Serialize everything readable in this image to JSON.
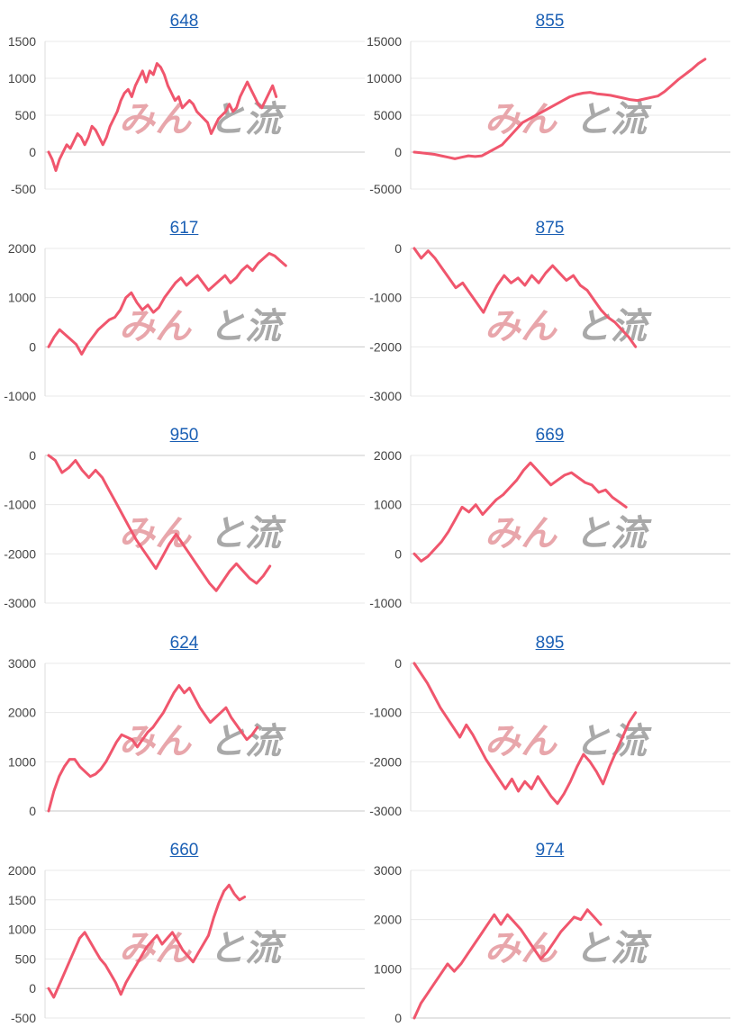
{
  "watermark": {
    "kana": "みん",
    "kanji": "と流",
    "kana_color": "#e8a6ab",
    "kanji_color": "#a9a9a9"
  },
  "line_color": "#f0566d",
  "chart_data": [
    {
      "type": "line",
      "title": "648",
      "ylim": [
        -500,
        1500
      ],
      "yticks": [
        1500,
        1000,
        500,
        0,
        -500
      ],
      "series": [
        {
          "values": [
            0,
            -100,
            -250,
            -100,
            0,
            100,
            50,
            150,
            250,
            200,
            100,
            200,
            350,
            300,
            200,
            100,
            200,
            350,
            450,
            550,
            700,
            800,
            850,
            750,
            900,
            1000,
            1100,
            950,
            1100,
            1050,
            1200,
            1150,
            1050,
            900,
            800,
            700,
            750,
            600,
            650,
            700,
            650,
            550,
            500,
            450,
            400,
            250,
            350,
            450,
            500,
            550,
            650,
            550,
            600,
            750,
            850,
            950,
            850,
            750,
            650,
            600,
            700,
            800,
            900,
            750
          ]
        }
      ]
    },
    {
      "type": "line",
      "title": "855",
      "ylim": [
        -5000,
        15000
      ],
      "yticks": [
        15000,
        10000,
        5000,
        0,
        -5000
      ],
      "series": [
        {
          "values": [
            0,
            -100,
            -200,
            -300,
            -500,
            -700,
            -900,
            -700,
            -500,
            -600,
            -500,
            0,
            500,
            1000,
            2000,
            3000,
            4000,
            4500,
            5000,
            5500,
            6000,
            6500,
            7000,
            7500,
            7800,
            8000,
            8100,
            7900,
            7800,
            7700,
            7500,
            7300,
            7100,
            7000,
            7200,
            7400,
            7600,
            8200,
            9000,
            9800,
            10500,
            11200,
            12000,
            12600
          ]
        }
      ]
    },
    {
      "type": "line",
      "title": "617",
      "ylim": [
        -1000,
        2000
      ],
      "yticks": [
        2000,
        1000,
        0,
        -1000
      ],
      "series": [
        {
          "values": [
            0,
            200,
            350,
            250,
            150,
            50,
            -150,
            50,
            200,
            350,
            450,
            550,
            600,
            750,
            1000,
            1100,
            900,
            750,
            850,
            700,
            800,
            1000,
            1150,
            1300,
            1400,
            1250,
            1350,
            1450,
            1300,
            1150,
            1250,
            1350,
            1450,
            1300,
            1400,
            1550,
            1650,
            1550,
            1700,
            1800,
            1900,
            1850,
            1750,
            1650
          ]
        }
      ]
    },
    {
      "type": "line",
      "title": "875",
      "ylim": [
        -3000,
        0
      ],
      "yticks": [
        0,
        -1000,
        -2000,
        -3000
      ],
      "series": [
        {
          "values": [
            0,
            -200,
            -50,
            -200,
            -400,
            -600,
            -800,
            -700,
            -900,
            -1100,
            -1300,
            -1000,
            -750,
            -550,
            -700,
            -600,
            -750,
            -550,
            -700,
            -500,
            -350,
            -500,
            -650,
            -550,
            -750,
            -850,
            -1050,
            -1250,
            -1400,
            -1500,
            -1650,
            -1800,
            -2000
          ]
        }
      ]
    },
    {
      "type": "line",
      "title": "950",
      "ylim": [
        -3000,
        0
      ],
      "yticks": [
        0,
        -1000,
        -2000,
        -3000
      ],
      "series": [
        {
          "values": [
            0,
            -100,
            -350,
            -250,
            -100,
            -300,
            -450,
            -300,
            -450,
            -700,
            -950,
            -1200,
            -1450,
            -1700,
            -1900,
            -2100,
            -2300,
            -2050,
            -1800,
            -1600,
            -1800,
            -2000,
            -2200,
            -2400,
            -2600,
            -2750,
            -2550,
            -2350,
            -2200,
            -2350,
            -2500,
            -2600,
            -2450,
            -2250
          ]
        }
      ]
    },
    {
      "type": "line",
      "title": "669",
      "ylim": [
        -1000,
        2000
      ],
      "yticks": [
        2000,
        1000,
        0,
        -1000
      ],
      "series": [
        {
          "values": [
            0,
            -150,
            -50,
            100,
            250,
            450,
            700,
            950,
            850,
            1000,
            800,
            950,
            1100,
            1200,
            1350,
            1500,
            1700,
            1850,
            1700,
            1550,
            1400,
            1500,
            1600,
            1650,
            1550,
            1450,
            1400,
            1250,
            1300,
            1150,
            1050,
            950
          ]
        }
      ]
    },
    {
      "type": "line",
      "title": "624",
      "ylim": [
        0,
        3000
      ],
      "yticks": [
        3000,
        2000,
        1000,
        0
      ],
      "series": [
        {
          "values": [
            0,
            400,
            700,
            900,
            1050,
            1050,
            900,
            800,
            700,
            750,
            850,
            1000,
            1200,
            1400,
            1550,
            1500,
            1450,
            1300,
            1450,
            1600,
            1700,
            1850,
            2000,
            2200,
            2400,
            2550,
            2400,
            2500,
            2300,
            2100,
            1950,
            1800,
            1900,
            2000,
            2100,
            1900,
            1750,
            1600,
            1450,
            1550,
            1700
          ]
        }
      ]
    },
    {
      "type": "line",
      "title": "895",
      "ylim": [
        -3000,
        0
      ],
      "yticks": [
        0,
        -1000,
        -2000,
        -3000
      ],
      "series": [
        {
          "values": [
            0,
            -200,
            -400,
            -650,
            -900,
            -1100,
            -1300,
            -1500,
            -1250,
            -1450,
            -1700,
            -1950,
            -2150,
            -2350,
            -2550,
            -2350,
            -2600,
            -2400,
            -2550,
            -2300,
            -2500,
            -2700,
            -2850,
            -2650,
            -2400,
            -2100,
            -1850,
            -2000,
            -2200,
            -2450,
            -2100,
            -1800,
            -1500,
            -1200,
            -1000
          ]
        }
      ]
    },
    {
      "type": "line",
      "title": "660",
      "ylim": [
        -500,
        2000
      ],
      "yticks": [
        2000,
        1500,
        1000,
        500,
        0,
        -500
      ],
      "series": [
        {
          "values": [
            0,
            -150,
            50,
            250,
            450,
            650,
            850,
            950,
            800,
            650,
            500,
            400,
            250,
            100,
            -100,
            100,
            250,
            400,
            550,
            700,
            800,
            900,
            750,
            850,
            950,
            800,
            650,
            550,
            450,
            600,
            750,
            900,
            1200,
            1450,
            1650,
            1750,
            1600,
            1500,
            1550
          ]
        }
      ]
    },
    {
      "type": "line",
      "title": "974",
      "ylim": [
        0,
        3000
      ],
      "yticks": [
        3000,
        2000,
        1000,
        0
      ],
      "series": [
        {
          "values": [
            0,
            300,
            500,
            700,
            900,
            1100,
            950,
            1100,
            1300,
            1500,
            1700,
            1900,
            2100,
            1900,
            2100,
            1950,
            1800,
            1600,
            1400,
            1200,
            1350,
            1550,
            1750,
            1900,
            2050,
            2000,
            2200,
            2050,
            1900
          ]
        }
      ]
    }
  ]
}
